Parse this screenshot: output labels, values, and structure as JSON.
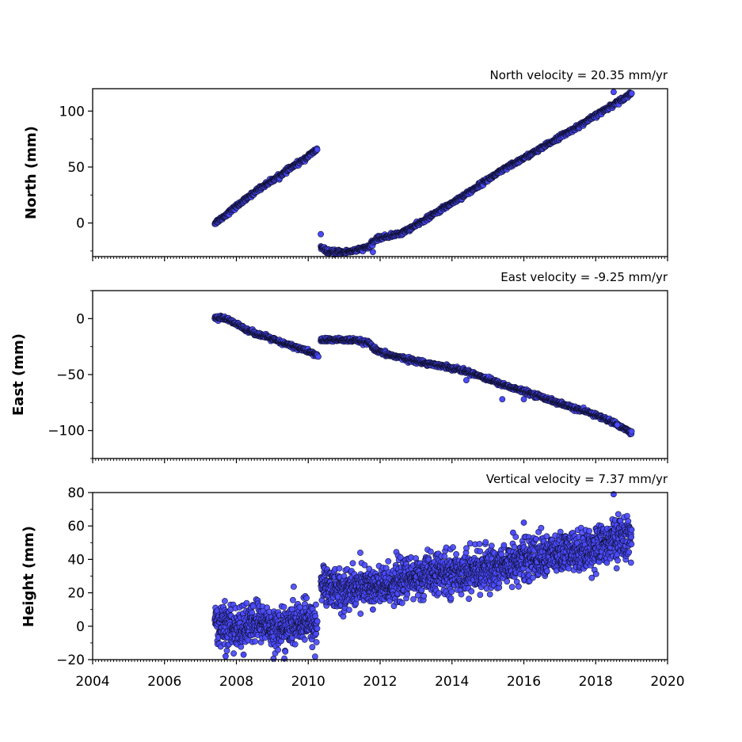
{
  "chart_data": [
    {
      "type": "scatter",
      "panel": "north",
      "title": "North velocity = 20.35 mm/yr",
      "ylabel": "North (mm)",
      "xlim": [
        2004,
        2020
      ],
      "ylim": [
        -30,
        120
      ],
      "yticks": [
        0,
        50,
        100
      ],
      "ytick_labels": [
        "0",
        "50",
        "100"
      ],
      "marker_color": "#4a4aff",
      "series": [
        {
          "values_x": [
            2007.4,
            2007.7,
            2008.0,
            2008.3,
            2008.6,
            2008.9,
            2009.2,
            2009.5,
            2009.8,
            2010.05,
            2010.25
          ],
          "values_y": [
            0,
            7,
            15,
            22,
            30,
            36,
            42,
            49,
            55,
            61,
            66
          ]
        },
        {
          "values_x": [
            2010.35,
            2010.6,
            2011.0,
            2011.4,
            2011.7,
            2011.9,
            2012.2,
            2012.6,
            2013.0,
            2013.5,
            2014.0,
            2014.5,
            2015.0,
            2015.5,
            2016.0,
            2016.5,
            2017.0,
            2017.5,
            2018.0,
            2018.5,
            2019.0
          ],
          "values_y": [
            -22,
            -26,
            -26,
            -24,
            -21,
            -14,
            -12,
            -9,
            -2,
            8,
            18,
            28,
            39,
            49,
            58,
            67,
            77,
            86,
            96,
            106,
            116
          ]
        }
      ],
      "outliers": [
        [
          2010.35,
          -10
        ],
        [
          2011.8,
          -26
        ],
        [
          2018.5,
          117
        ]
      ]
    },
    {
      "type": "scatter",
      "panel": "east",
      "title": "East velocity = -9.25 mm/yr",
      "ylabel": "East (mm)",
      "xlim": [
        2004,
        2020
      ],
      "ylim": [
        -125,
        25
      ],
      "yticks": [
        0,
        -50,
        -100
      ],
      "ytick_labels": [
        "0",
        "−50",
        "−100"
      ],
      "marker_color": "#4a4aff",
      "series": [
        {
          "values_x": [
            2007.4,
            2007.7,
            2008.0,
            2008.3,
            2008.6,
            2008.9,
            2009.2,
            2009.5,
            2009.8,
            2010.05,
            2010.25
          ],
          "values_y": [
            1,
            0,
            -5,
            -10,
            -14,
            -17,
            -21,
            -24,
            -27,
            -30,
            -33
          ]
        },
        {
          "values_x": [
            2010.35,
            2010.6,
            2011.0,
            2011.4,
            2011.7,
            2011.9,
            2012.2,
            2012.6,
            2013.0,
            2013.5,
            2014.0,
            2014.5,
            2015.0,
            2015.5,
            2016.0,
            2016.5,
            2017.0,
            2017.5,
            2018.0,
            2018.5,
            2019.0
          ],
          "values_y": [
            -19,
            -19,
            -19,
            -20,
            -22,
            -29,
            -32,
            -35,
            -38,
            -41,
            -44,
            -48,
            -54,
            -60,
            -65,
            -70,
            -76,
            -81,
            -86,
            -93,
            -102
          ]
        }
      ],
      "outliers": [
        [
          2010.28,
          -34
        ],
        [
          2014.4,
          -55
        ],
        [
          2015.4,
          -72
        ],
        [
          2016.0,
          -72
        ],
        [
          2018.6,
          -95
        ]
      ]
    },
    {
      "type": "scatter",
      "panel": "height",
      "title": "Vertical velocity = 7.37 mm/yr",
      "ylabel": "Height (mm)",
      "xlim": [
        2004,
        2020
      ],
      "ylim": [
        -20,
        80
      ],
      "yticks": [
        -20,
        0,
        20,
        40,
        60,
        80
      ],
      "ytick_labels": [
        "−20",
        "0",
        "20",
        "40",
        "60",
        "80"
      ],
      "marker_color": "#4a4aff",
      "series": [
        {
          "values_x": [
            2007.4,
            2007.7,
            2008.0,
            2008.3,
            2008.6,
            2008.9,
            2009.2,
            2009.5,
            2009.8,
            2010.05,
            2010.25
          ],
          "values_y": [
            2,
            0,
            -2,
            0,
            3,
            0,
            -2,
            0,
            3,
            2,
            0
          ]
        },
        {
          "values_x": [
            2010.35,
            2010.6,
            2011.0,
            2011.4,
            2011.7,
            2011.9,
            2012.2,
            2012.6,
            2013.0,
            2013.5,
            2014.0,
            2014.5,
            2015.0,
            2015.5,
            2016.0,
            2016.5,
            2017.0,
            2017.5,
            2018.0,
            2018.5,
            2019.0
          ],
          "values_y": [
            25,
            24,
            21,
            24,
            25,
            22,
            24,
            28,
            29,
            31,
            32,
            33,
            34,
            37,
            40,
            42,
            43,
            45,
            47,
            52,
            53
          ]
        }
      ],
      "scatter_sd": 6,
      "outliers": [
        [
          2018.5,
          79
        ],
        [
          2007.7,
          -18
        ],
        [
          2008.2,
          -17
        ],
        [
          2011.8,
          10
        ],
        [
          2016.0,
          62
        ],
        [
          2015.7,
          56
        ]
      ]
    }
  ],
  "shared_x": {
    "xlabel_ticks": [
      2004,
      2006,
      2008,
      2010,
      2012,
      2014,
      2016,
      2018,
      2020
    ],
    "xtick_labels": [
      "2004",
      "2006",
      "2008",
      "2010",
      "2012",
      "2014",
      "2016",
      "2018",
      "2020"
    ]
  }
}
